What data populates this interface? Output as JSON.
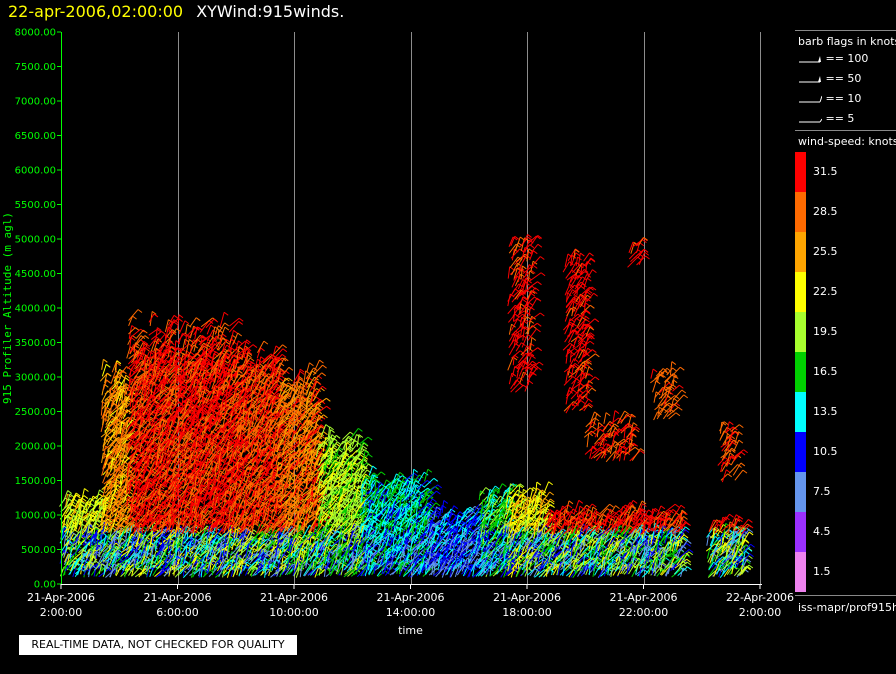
{
  "title": {
    "timestamp": "22-apr-2006,02:00:00",
    "product": "XYWind:915winds."
  },
  "notice": "REAL-TIME DATA, NOT CHECKED FOR QUALITY",
  "legend": {
    "barb_title": "barb flags in knots",
    "barbs": [
      {
        "label": "== 100",
        "icon": "barb-100-icon"
      },
      {
        "label": "== 50",
        "icon": "barb-50-icon"
      },
      {
        "label": "== 10",
        "icon": "barb-10-icon"
      },
      {
        "label": "== 5",
        "icon": "barb-5-icon"
      }
    ],
    "speed_title": "wind-speed: knots",
    "colorbar": [
      {
        "label": "31.5",
        "color": "#ff0000"
      },
      {
        "label": "28.5",
        "color": "#ff6a00"
      },
      {
        "label": "25.5",
        "color": "#ffa500"
      },
      {
        "label": "22.5",
        "color": "#ffff00"
      },
      {
        "label": "19.5",
        "color": "#a8ff2e"
      },
      {
        "label": "16.5",
        "color": "#00d000"
      },
      {
        "label": "13.5",
        "color": "#00ffff"
      },
      {
        "label": "10.5",
        "color": "#0000ff"
      },
      {
        "label": "7.5",
        "color": "#6495ed"
      },
      {
        "label": "4.5",
        "color": "#9b30ff"
      },
      {
        "label": "1.5",
        "color": "#ee82ee"
      }
    ],
    "footer": "iss-mapr/prof915h"
  },
  "chart_data": {
    "type": "scatter",
    "title": "XYWind:915winds.",
    "xlabel": "time",
    "ylabel": "915 Profiler Altitude (m agl)",
    "ylim": [
      0,
      8000
    ],
    "xlim_hours": [
      0,
      24
    ],
    "yticks": [
      "0.00",
      "500.00",
      "1000.00",
      "1500.00",
      "2000.00",
      "2500.00",
      "3000.00",
      "3500.00",
      "4000.00",
      "4500.00",
      "5000.00",
      "5500.00",
      "6000.00",
      "6500.00",
      "7000.00",
      "7500.00",
      "8000.00"
    ],
    "xticks": [
      {
        "hour": 0,
        "date": "21-Apr-2006",
        "time": "2:00:00"
      },
      {
        "hour": 4,
        "date": "21-Apr-2006",
        "time": "6:00:00"
      },
      {
        "hour": 8,
        "date": "21-Apr-2006",
        "time": "10:00:00"
      },
      {
        "hour": 12,
        "date": "21-Apr-2006",
        "time": "14:00:00"
      },
      {
        "hour": 16,
        "date": "21-Apr-2006",
        "time": "18:00:00"
      },
      {
        "hour": 20,
        "date": "21-Apr-2006",
        "time": "22:00:00"
      },
      {
        "hour": 24,
        "date": "22-Apr-2006",
        "time": "2:00:00"
      }
    ],
    "grid": "vertical",
    "regions": [
      {
        "t0": 0.0,
        "t1": 1.4,
        "hmax": 1200,
        "speed": 22
      },
      {
        "t0": 1.4,
        "t1": 2.3,
        "hmax": 3000,
        "speed": 26
      },
      {
        "t0": 2.3,
        "t1": 4.6,
        "hmax": 3700,
        "speed": 31
      },
      {
        "t0": 4.6,
        "t1": 6.0,
        "hmax": 3600,
        "speed": 31
      },
      {
        "t0": 6.0,
        "t1": 7.4,
        "hmax": 3400,
        "speed": 30
      },
      {
        "t0": 7.4,
        "t1": 8.8,
        "hmax": 3000,
        "speed": 28
      },
      {
        "t0": 8.8,
        "t1": 10.3,
        "hmax": 2100,
        "speed": 20
      },
      {
        "t0": 10.3,
        "t1": 12.6,
        "hmax": 1500,
        "speed": 14
      },
      {
        "t0": 12.6,
        "t1": 14.4,
        "hmax": 1000,
        "speed": 11
      },
      {
        "t0": 14.4,
        "t1": 15.3,
        "hmax": 1300,
        "speed": 17
      },
      {
        "t0": 15.3,
        "t1": 16.6,
        "hmax": 1300,
        "speed": 23
      },
      {
        "t0": 16.6,
        "t1": 21.3,
        "hmax": 1000,
        "speed": 31
      },
      {
        "t0": 22.2,
        "t1": 23.4,
        "hmax": 850,
        "speed": 31
      }
    ],
    "aloft": [
      {
        "t0": 15.4,
        "t1": 16.1,
        "h0": 2800,
        "h1": 5000,
        "speed": 31
      },
      {
        "t0": 17.3,
        "t1": 18.0,
        "h0": 2500,
        "h1": 4800,
        "speed": 31
      },
      {
        "t0": 18.0,
        "t1": 19.6,
        "h0": 1800,
        "h1": 2400,
        "speed": 30
      },
      {
        "t0": 19.5,
        "t1": 19.9,
        "h0": 4600,
        "h1": 5000,
        "speed": 31
      },
      {
        "t0": 20.3,
        "t1": 21.0,
        "h0": 2400,
        "h1": 3100,
        "speed": 29
      },
      {
        "t0": 22.6,
        "t1": 23.1,
        "h0": 1500,
        "h1": 2300,
        "speed": 30
      }
    ]
  }
}
